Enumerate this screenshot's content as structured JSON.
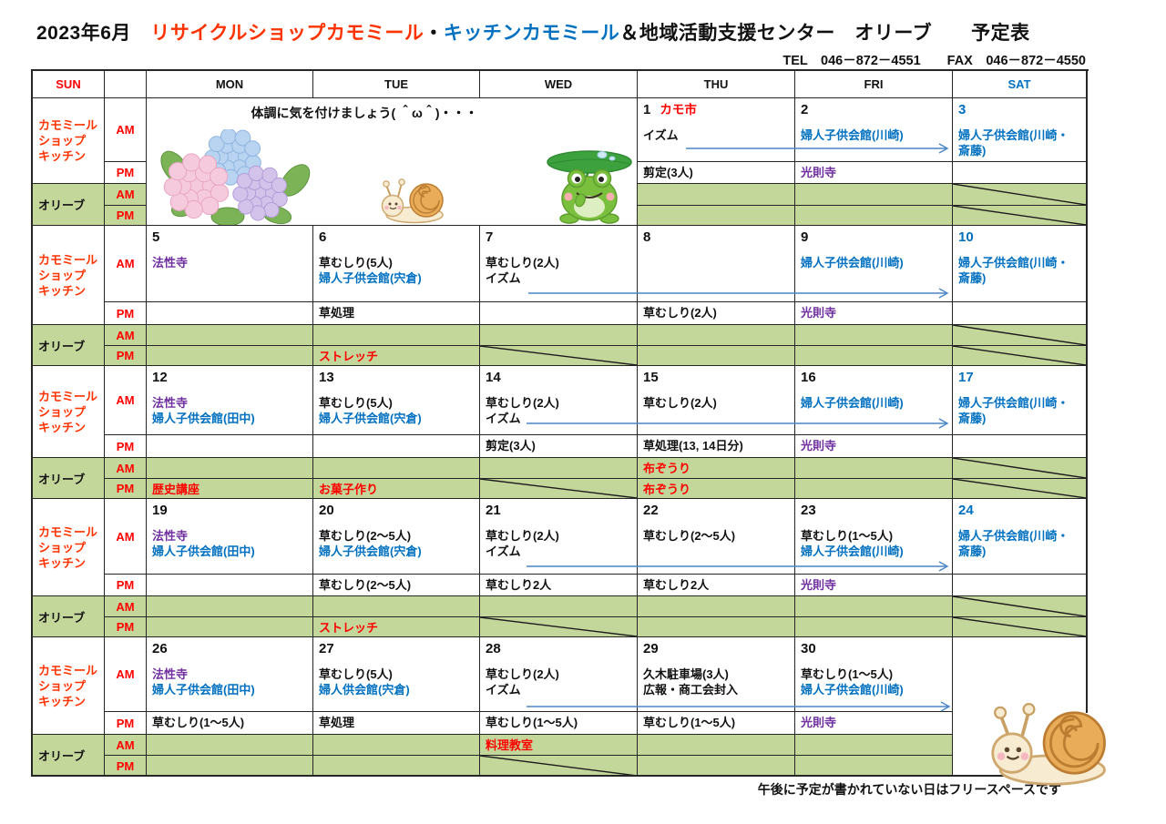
{
  "title": {
    "parts": [
      {
        "text": "2023年6月　",
        "color": "black"
      },
      {
        "text": "リサイクルショップカモミール",
        "color": "shop_red"
      },
      {
        "text": "・",
        "color": "black"
      },
      {
        "text": "キッチンカモミール",
        "color": "blue"
      },
      {
        "text": "＆地域活動支援センター　オリーブ　　予定表",
        "color": "black"
      }
    ]
  },
  "contact": "TEL　046－872－4551　　FAX　046－872－4550",
  "footnote": "午後に予定が書かれていない日はフリースペースです",
  "week1_message": "体調に気を付けましょう( ＾ω＾)・・・",
  "colors": {
    "black": "#111111",
    "red": "#ff0000",
    "shop_red": "#ff3300",
    "blue": "#0070c0",
    "purple": "#7030a0",
    "green": "#c4d79b",
    "arrow": "#4a86c6"
  },
  "header": [
    {
      "label": "SUN",
      "color": "red"
    },
    {
      "label": "",
      "color": "black"
    },
    {
      "label": "MON",
      "color": "black"
    },
    {
      "label": "TUE",
      "color": "black"
    },
    {
      "label": "WED",
      "color": "black"
    },
    {
      "label": "THU",
      "color": "black"
    },
    {
      "label": "FRI",
      "color": "black"
    },
    {
      "label": "SAT",
      "color": "blue"
    }
  ],
  "row_labels": {
    "group1": [
      "カモミール",
      "ショップ",
      "キッチン"
    ],
    "group2": "オリーブ",
    "am": "AM",
    "pm": "PM"
  },
  "illustrations": [
    "hydrangea-illustration",
    "snail-illustration",
    "frog-with-leaf-illustration",
    "snail-illustration-large"
  ],
  "weeks": [
    {
      "merged_left": true,
      "days": [
        null,
        null,
        null,
        {
          "num": "1",
          "numColor": "black",
          "numSuffix": {
            "t": "カモ市",
            "c": "red"
          },
          "am": [
            {
              "t": "イズム",
              "c": "black"
            }
          ],
          "pm": [
            {
              "t": "剪定(3人)",
              "c": "black"
            }
          ],
          "oam": [],
          "opm": []
        },
        {
          "num": "2",
          "numColor": "black",
          "am": [
            {
              "t": "婦人子供会館(川崎)",
              "c": "blue"
            }
          ],
          "pm": [
            {
              "t": "光則寺",
              "c": "purple"
            }
          ],
          "oam": [],
          "opm": []
        },
        {
          "num": "3",
          "numColor": "blue",
          "am": [
            {
              "t": "婦人子供会館(川崎・斎藤)",
              "c": "blue"
            }
          ],
          "pm": [],
          "oam": [],
          "opm": [],
          "strikeOam": true,
          "strikeOpm": true
        }
      ]
    },
    {
      "days": [
        {
          "num": "5",
          "numColor": "black",
          "am": [
            {
              "t": "法性寺",
              "c": "purple"
            }
          ],
          "pm": [],
          "oam": [],
          "opm": []
        },
        {
          "num": "6",
          "numColor": "black",
          "am": [
            {
              "t": "草むしり(5人)",
              "c": "black"
            },
            {
              "t": "婦人子供会館(宍倉)",
              "c": "blue"
            }
          ],
          "pm": [
            {
              "t": "草処理",
              "c": "black"
            }
          ],
          "oam": [],
          "opm": [
            {
              "t": "ストレッチ",
              "c": "red"
            }
          ]
        },
        {
          "num": "7",
          "numColor": "black",
          "am": [
            {
              "t": "草むしり(2人)",
              "c": "black"
            },
            {
              "t": "イズム",
              "c": "black"
            }
          ],
          "pm": [],
          "oam": [],
          "opm": [],
          "strikeOpm": true
        },
        {
          "num": "8",
          "numColor": "black",
          "am": [],
          "pm": [
            {
              "t": "草むしり(2人)",
              "c": "black"
            }
          ],
          "oam": [],
          "opm": []
        },
        {
          "num": "9",
          "numColor": "black",
          "am": [
            {
              "t": "婦人子供会館(川崎)",
              "c": "blue"
            }
          ],
          "pm": [
            {
              "t": "光則寺",
              "c": "purple"
            }
          ],
          "oam": [],
          "opm": []
        },
        {
          "num": "10",
          "numColor": "blue",
          "am": [
            {
              "t": "婦人子供会館(川崎・斎藤)",
              "c": "blue"
            }
          ],
          "pm": [],
          "oam": [],
          "opm": [],
          "strikeOam": true,
          "strikeOpm": true
        }
      ]
    },
    {
      "days": [
        {
          "num": "12",
          "numColor": "black",
          "am": [
            {
              "t": "法性寺",
              "c": "purple"
            },
            {
              "t": "婦人子供会館(田中)",
              "c": "blue"
            }
          ],
          "pm": [],
          "oam": [],
          "opm": [
            {
              "t": "歴史講座",
              "c": "red"
            }
          ]
        },
        {
          "num": "13",
          "numColor": "black",
          "am": [
            {
              "t": "草むしり(5人)",
              "c": "black"
            },
            {
              "t": "婦人子供会館(宍倉)",
              "c": "blue"
            }
          ],
          "pm": [],
          "oam": [],
          "opm": [
            {
              "t": "お菓子作り",
              "c": "red"
            }
          ]
        },
        {
          "num": "14",
          "numColor": "black",
          "am": [
            {
              "t": "草むしり(2人)",
              "c": "black"
            },
            {
              "t": "イズム",
              "c": "black"
            }
          ],
          "pm": [
            {
              "t": "剪定(3人)",
              "c": "black"
            }
          ],
          "oam": [],
          "opm": [],
          "strikeOpm": true
        },
        {
          "num": "15",
          "numColor": "black",
          "am": [
            {
              "t": "草むしり(2人)",
              "c": "black"
            }
          ],
          "pm": [
            {
              "t": "草処理(13, 14日分)",
              "c": "black"
            }
          ],
          "oam": [
            {
              "t": "布ぞうり",
              "c": "red"
            }
          ],
          "opm": [
            {
              "t": "布ぞうり",
              "c": "red"
            }
          ]
        },
        {
          "num": "16",
          "numColor": "black",
          "am": [
            {
              "t": "婦人子供会館(川崎)",
              "c": "blue"
            }
          ],
          "pm": [
            {
              "t": "光則寺",
              "c": "purple"
            }
          ],
          "oam": [],
          "opm": []
        },
        {
          "num": "17",
          "numColor": "blue",
          "am": [
            {
              "t": "婦人子供会館(川崎・斎藤)",
              "c": "blue"
            }
          ],
          "pm": [],
          "oam": [],
          "opm": [],
          "strikeOam": true,
          "strikeOpm": true
        }
      ]
    },
    {
      "days": [
        {
          "num": "19",
          "numColor": "black",
          "am": [
            {
              "t": "法性寺",
              "c": "purple"
            },
            {
              "t": "婦人子供会館(田中)",
              "c": "blue"
            }
          ],
          "pm": [],
          "oam": [],
          "opm": []
        },
        {
          "num": "20",
          "numColor": "black",
          "am": [
            {
              "t": "草むしり(2～5人)",
              "c": "black"
            },
            {
              "t": "婦人子供会館(宍倉)",
              "c": "blue"
            }
          ],
          "pm": [
            {
              "t": "草むしり(2～5人)",
              "c": "black"
            }
          ],
          "oam": [],
          "opm": [
            {
              "t": "ストレッチ",
              "c": "red"
            }
          ]
        },
        {
          "num": "21",
          "numColor": "black",
          "am": [
            {
              "t": "草むしり(2人)",
              "c": "black"
            },
            {
              "t": "イズム",
              "c": "black"
            }
          ],
          "pm": [
            {
              "t": "草むしり2人",
              "c": "black"
            }
          ],
          "oam": [],
          "opm": [],
          "strikeOpm": true
        },
        {
          "num": "22",
          "numColor": "black",
          "am": [
            {
              "t": "草むしり(2～5人)",
              "c": "black"
            }
          ],
          "pm": [
            {
              "t": "草むしり2人",
              "c": "black"
            }
          ],
          "oam": [],
          "opm": []
        },
        {
          "num": "23",
          "numColor": "black",
          "am": [
            {
              "t": "草むしり(1～5人)",
              "c": "black"
            },
            {
              "t": "婦人子供会館(川崎)",
              "c": "blue"
            }
          ],
          "pm": [
            {
              "t": "光則寺",
              "c": "purple"
            }
          ],
          "oam": [],
          "opm": []
        },
        {
          "num": "24",
          "numColor": "blue",
          "am": [
            {
              "t": "婦人子供会館(川崎・斎藤)",
              "c": "blue"
            }
          ],
          "pm": [],
          "oam": [],
          "opm": [],
          "strikeOam": true,
          "strikeOpm": true
        }
      ]
    },
    {
      "days": [
        {
          "num": "26",
          "numColor": "black",
          "am": [
            {
              "t": "法性寺",
              "c": "purple"
            },
            {
              "t": "婦人子供会館(田中)",
              "c": "blue"
            }
          ],
          "pm": [
            {
              "t": "草むしり(1～5人)",
              "c": "black"
            }
          ],
          "oam": [],
          "opm": []
        },
        {
          "num": "27",
          "numColor": "black",
          "am": [
            {
              "t": "草むしり(5人)",
              "c": "black"
            },
            {
              "t": "婦人供会館(宍倉)",
              "c": "blue"
            }
          ],
          "pm": [
            {
              "t": "草処理",
              "c": "black"
            }
          ],
          "oam": [],
          "opm": []
        },
        {
          "num": "28",
          "numColor": "black",
          "am": [
            {
              "t": "草むしり(2人)",
              "c": "black"
            },
            {
              "t": "イズム",
              "c": "black"
            }
          ],
          "pm": [
            {
              "t": "草むしり(1～5人)",
              "c": "black"
            }
          ],
          "oam": [
            {
              "t": "料理教室",
              "c": "red"
            }
          ],
          "opm": [],
          "strikeOpm": true
        },
        {
          "num": "29",
          "numColor": "black",
          "am": [
            {
              "t": "久木駐車場(3人)",
              "c": "black"
            },
            {
              "t": "広報・商工会封入",
              "c": "black"
            }
          ],
          "pm": [
            {
              "t": "草むしり(1～5人)",
              "c": "black"
            }
          ],
          "oam": [],
          "opm": []
        },
        {
          "num": "30",
          "numColor": "black",
          "am": [
            {
              "t": "草むしり(1～5人)",
              "c": "black"
            },
            {
              "t": "婦人子供会館(川崎)",
              "c": "blue"
            }
          ],
          "pm": [
            {
              "t": "光則寺",
              "c": "purple"
            }
          ],
          "oam": [],
          "opm": []
        },
        {
          "open": true
        }
      ]
    }
  ]
}
